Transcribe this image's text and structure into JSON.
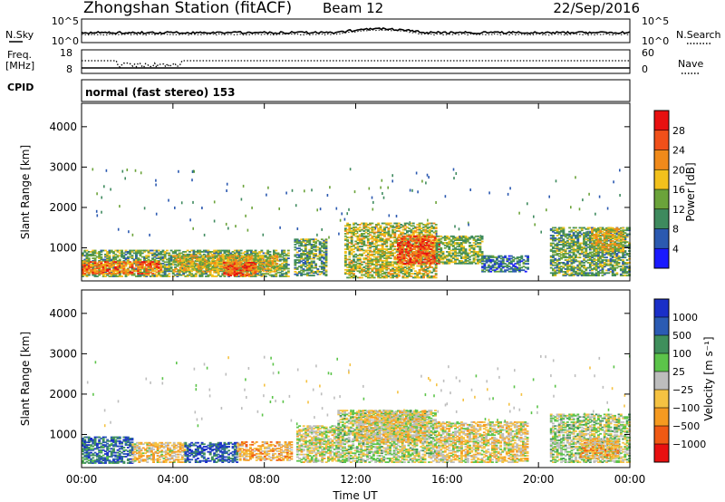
{
  "header": {
    "station": "Zhongshan Station (fitACF)",
    "beam": "Beam 12",
    "date": "22/Sep/2016"
  },
  "nsky_panel": {
    "left_label": "N.Sky",
    "left_ticks": [
      "10^5",
      "10^0"
    ],
    "right_label": "N.Search",
    "right_ticks": [
      "10^5",
      "10^0"
    ]
  },
  "freq_panel": {
    "left_label_line1": "Freq.",
    "left_label_line2": "[MHz]",
    "left_ticks": [
      "18",
      "8"
    ],
    "right_label": "Nave",
    "right_ticks": [
      "60",
      "0"
    ]
  },
  "cpid_panel": {
    "label": "CPID",
    "text": "normal (fast stereo) 153"
  },
  "colors": {
    "power": [
      "#1a1aff",
      "#2b59b0",
      "#3e8a5e",
      "#6ba33a",
      "#f2c11c",
      "#f08a1a",
      "#f0501a",
      "#e81010"
    ],
    "velocity": [
      "#e81010",
      "#f05a14",
      "#f59a20",
      "#f5c242",
      "#bdbdbd",
      "#5cc44a",
      "#3f8f5c",
      "#2b5bb3",
      "#1a2fc8"
    ]
  },
  "chart_data": [
    {
      "type": "heatmap",
      "title": "Power",
      "xlabel": "",
      "ylabel": "Slant Range [km]",
      "x_ticks": [
        "00:00",
        "04:00",
        "08:00",
        "12:00",
        "16:00",
        "20:00",
        "00:00"
      ],
      "y_ticks": [
        "1000",
        "2000",
        "3000",
        "4000"
      ],
      "xlim": [
        0,
        24
      ],
      "ylim": [
        180,
        4580
      ],
      "colorbar": {
        "label": "Power [dB]",
        "ticks": [
          "4",
          "8",
          "12",
          "16",
          "20",
          "24",
          "28"
        ],
        "range": [
          0,
          32
        ]
      },
      "regions": [
        {
          "t": [
            0.0,
            9.0
          ],
          "r": [
            280,
            950
          ],
          "v": 13
        },
        {
          "t": [
            0.0,
            3.5
          ],
          "r": [
            350,
            650
          ],
          "v": 24
        },
        {
          "t": [
            4.0,
            8.5
          ],
          "r": [
            400,
            800
          ],
          "v": 18
        },
        {
          "t": [
            6.2,
            7.6
          ],
          "r": [
            300,
            650
          ],
          "v": 26
        },
        {
          "t": [
            9.3,
            10.7
          ],
          "r": [
            300,
            1200
          ],
          "v": 12
        },
        {
          "t": [
            11.5,
            15.5
          ],
          "r": [
            250,
            1600
          ],
          "v": 16
        },
        {
          "t": [
            13.8,
            15.6
          ],
          "r": [
            600,
            1300
          ],
          "v": 26
        },
        {
          "t": [
            15.5,
            17.5
          ],
          "r": [
            600,
            1300
          ],
          "v": 14
        },
        {
          "t": [
            17.5,
            19.5
          ],
          "r": [
            400,
            800
          ],
          "v": 8
        },
        {
          "t": [
            20.5,
            24.0
          ],
          "r": [
            300,
            1500
          ],
          "v": 12
        },
        {
          "t": [
            22.3,
            23.7
          ],
          "r": [
            900,
            1500
          ],
          "v": 18
        }
      ]
    },
    {
      "type": "heatmap",
      "title": "Velocity",
      "xlabel": "Time UT",
      "ylabel": "Slant Range [km]",
      "x_ticks": [
        "00:00",
        "04:00",
        "08:00",
        "12:00",
        "16:00",
        "20:00",
        "00:00"
      ],
      "y_ticks": [
        "1000",
        "2000",
        "3000",
        "4000"
      ],
      "xlim": [
        0,
        24
      ],
      "ylim": [
        180,
        4580
      ],
      "colorbar": {
        "label": "Velocity [m s⁻¹]",
        "ticks": [
          "1000",
          "500",
          "100",
          "25",
          "−25",
          "−100",
          "−500",
          "−1000"
        ],
        "range": [
          -1000,
          1000
        ]
      },
      "regions": [
        {
          "t": [
            0.0,
            2.2
          ],
          "r": [
            280,
            950
          ],
          "v": 600
        },
        {
          "t": [
            2.2,
            4.5
          ],
          "r": [
            300,
            800
          ],
          "v": -200
        },
        {
          "t": [
            4.5,
            6.8
          ],
          "r": [
            300,
            800
          ],
          "v": 700
        },
        {
          "t": [
            6.8,
            9.2
          ],
          "r": [
            350,
            800
          ],
          "v": -300
        },
        {
          "t": [
            9.4,
            11.2
          ],
          "r": [
            300,
            1200
          ],
          "v": -50
        },
        {
          "t": [
            11.2,
            15.5
          ],
          "r": [
            300,
            1600
          ],
          "v": 60
        },
        {
          "t": [
            12.0,
            15.0
          ],
          "r": [
            800,
            1600
          ],
          "v": -150
        },
        {
          "t": [
            15.5,
            19.5
          ],
          "r": [
            300,
            1300
          ],
          "v": -120
        },
        {
          "t": [
            20.5,
            24.0
          ],
          "r": [
            300,
            1500
          ],
          "v": 80
        },
        {
          "t": [
            21.8,
            23.5
          ],
          "r": [
            400,
            900
          ],
          "v": -300
        }
      ]
    }
  ]
}
